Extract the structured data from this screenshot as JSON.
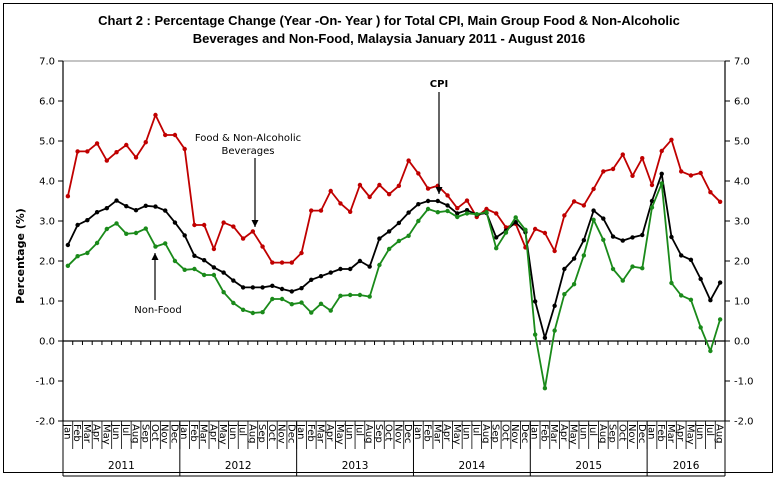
{
  "title_line1": "Chart 2 : Percentage Change (Year -On- Year ) for Total CPI, Main Group Food &  Non-Alcoholic",
  "title_line2": "Beverages and Non-Food,  Malaysia January  2011 -  August 2016",
  "chart_data": {
    "type": "line",
    "title": "Chart 2 : Percentage Change (Year -On- Year ) for Total CPI, Main Group Food & Non-Alcoholic Beverages and Non-Food, Malaysia January 2011 - August 2016",
    "xlabel": "",
    "ylabel": "Percentage (%)",
    "ylim": [
      -2.0,
      7.0
    ],
    "yticks": [
      "-2.0",
      "-1.0",
      "0.0",
      "1.0",
      "2.0",
      "3.0",
      "4.0",
      "5.0",
      "6.0",
      "7.0"
    ],
    "month_labels": [
      "Jan",
      "Feb",
      "Mar",
      "Apr",
      "May",
      "Jun",
      "Jul",
      "Aug",
      "Sep",
      "Oct",
      "Nov",
      "Dec"
    ],
    "years": [
      "2011",
      "2012",
      "2013",
      "2014",
      "2015",
      "2016"
    ],
    "months_in_last_year": 8,
    "grid": false,
    "series": [
      {
        "name": "Food & Non-Alcoholic Beverages",
        "color": "#c00000",
        "values": [
          3.62,
          4.74,
          4.74,
          4.94,
          4.51,
          4.72,
          4.9,
          4.59,
          4.97,
          5.65,
          5.15,
          5.15,
          4.8,
          2.9,
          2.9,
          2.3,
          2.96,
          2.86,
          2.56,
          2.74,
          2.36,
          1.96,
          1.96,
          1.96,
          2.2,
          3.26,
          3.26,
          3.75,
          3.44,
          3.23,
          3.9,
          3.6,
          3.9,
          3.67,
          3.88,
          4.51,
          4.19,
          3.81,
          3.88,
          3.64,
          3.32,
          3.51,
          3.1,
          3.3,
          3.19,
          2.84,
          2.93,
          2.34,
          2.8,
          2.7,
          2.25,
          3.14,
          3.49,
          3.39,
          3.8,
          4.24,
          4.3,
          4.66,
          4.13,
          4.57,
          3.9,
          4.75,
          5.03,
          4.24,
          4.14,
          4.2,
          3.72,
          3.48
        ]
      },
      {
        "name": "CPI",
        "color": "#000000",
        "values": [
          2.4,
          2.9,
          3.02,
          3.22,
          3.32,
          3.51,
          3.37,
          3.27,
          3.38,
          3.36,
          3.26,
          2.96,
          2.64,
          2.13,
          2.02,
          1.84,
          1.71,
          1.51,
          1.34,
          1.34,
          1.34,
          1.38,
          1.3,
          1.24,
          1.32,
          1.53,
          1.62,
          1.71,
          1.8,
          1.8,
          2.0,
          1.86,
          2.56,
          2.74,
          2.95,
          3.21,
          3.42,
          3.5,
          3.5,
          3.39,
          3.19,
          3.27,
          3.16,
          3.2,
          2.59,
          2.76,
          2.97,
          2.72,
          0.99,
          0.08,
          0.88,
          1.8,
          2.06,
          2.52,
          3.26,
          3.06,
          2.61,
          2.51,
          2.59,
          2.65,
          3.5,
          4.18,
          2.6,
          2.14,
          2.03,
          1.55,
          1.02,
          1.46
        ]
      },
      {
        "name": "Non-Food",
        "color": "#1a8a1a",
        "values": [
          1.88,
          2.12,
          2.2,
          2.45,
          2.8,
          2.94,
          2.68,
          2.7,
          2.81,
          2.36,
          2.44,
          2.0,
          1.78,
          1.8,
          1.65,
          1.65,
          1.22,
          0.95,
          0.78,
          0.7,
          0.72,
          1.05,
          1.05,
          0.92,
          0.96,
          0.71,
          0.93,
          0.76,
          1.13,
          1.15,
          1.15,
          1.11,
          1.9,
          2.3,
          2.5,
          2.63,
          3.0,
          3.3,
          3.22,
          3.25,
          3.1,
          3.19,
          3.17,
          3.22,
          2.32,
          2.71,
          3.09,
          2.78,
          0.16,
          -1.18,
          0.26,
          1.17,
          1.42,
          2.14,
          3.03,
          2.53,
          1.8,
          1.51,
          1.86,
          1.82,
          3.34,
          3.94,
          1.45,
          1.14,
          1.03,
          0.34,
          -0.25,
          0.54
        ]
      }
    ],
    "annotations": [
      {
        "text_lines": [
          "Food & Non-Alcoholic",
          "Beverages"
        ],
        "series": "Food & Non-Alcoholic Beverages",
        "month_index": 19
      },
      {
        "text_lines": [
          "CPI"
        ],
        "series": "CPI",
        "month_index": 37
      },
      {
        "text_lines": [
          "Non-Food"
        ],
        "series": "Non-Food",
        "month_index": 9
      }
    ]
  }
}
